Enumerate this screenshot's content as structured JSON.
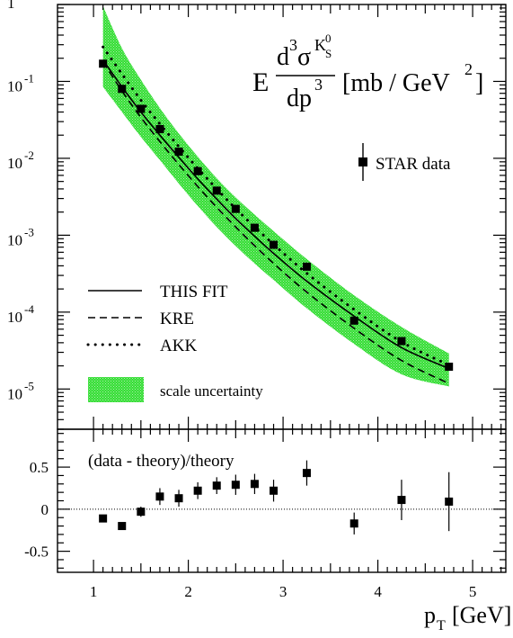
{
  "chart_data": [
    {
      "type": "line",
      "panel": "top",
      "yscale": "log",
      "xlim": [
        0.62,
        5.35
      ],
      "ylim": [
        3e-06,
        1
      ],
      "ylabel": {
        "prefix": "E",
        "num_base": "d",
        "num_exp": "3",
        "num_sigma": "σ",
        "num_sup_K": "K",
        "num_sup_K_sub": "S",
        "num_sup_K_sup": "0",
        "den_base": "dp",
        "den_exp": "3",
        "unit_pre": "[mb / GeV",
        "unit_exp": "2",
        "unit_post": "]"
      },
      "ytick_labels": [
        {
          "v": 1,
          "base": "1",
          "exp": ""
        },
        {
          "v": 0.1,
          "base": "10",
          "exp": "-1"
        },
        {
          "v": 0.01,
          "base": "10",
          "exp": "-2"
        },
        {
          "v": 0.001,
          "base": "10",
          "exp": "-3"
        },
        {
          "v": 0.0001,
          "base": "10",
          "exp": "-4"
        },
        {
          "v": 1e-05,
          "base": "10",
          "exp": "-5"
        }
      ],
      "band": {
        "name": "scale uncertainty",
        "color": "#33dd33",
        "x": [
          1.1,
          1.3,
          1.5,
          1.7,
          1.9,
          2.1,
          2.3,
          2.5,
          2.7,
          2.9,
          3.25,
          3.75,
          4.25,
          4.75
        ],
        "upper": [
          0.95,
          0.27,
          0.105,
          0.045,
          0.021,
          0.0105,
          0.0055,
          0.0031,
          0.00185,
          0.00113,
          0.00049,
          0.000165,
          6.4e-05,
          2.9e-05
        ],
        "lower": [
          0.085,
          0.04,
          0.019,
          0.0095,
          0.0047,
          0.0024,
          0.00128,
          0.000725,
          0.000428,
          0.000262,
          0.000112,
          3.85e-05,
          1.55e-05,
          1.08e-05
        ]
      },
      "series": [
        {
          "name": "THIS FIT",
          "style": "solid",
          "x": [
            1.1,
            1.3,
            1.5,
            1.7,
            1.9,
            2.1,
            2.3,
            2.5,
            2.7,
            2.9,
            3.25,
            3.75,
            4.25,
            4.75
          ],
          "y": [
            0.19,
            0.085,
            0.04,
            0.02,
            0.0103,
            0.0054,
            0.00295,
            0.00165,
            0.00097,
            0.00058,
            0.000252,
            8.85e-05,
            3.45e-05,
            1.85e-05
          ]
        },
        {
          "name": "KRE",
          "style": "dashed",
          "x": [
            1.1,
            1.3,
            1.5,
            1.7,
            1.9,
            2.1,
            2.3,
            2.5,
            2.7,
            2.9,
            3.25,
            3.75,
            4.25,
            4.75
          ],
          "y": [
            0.18,
            0.075,
            0.034,
            0.0165,
            0.0083,
            0.0043,
            0.0023,
            0.00128,
            0.00073,
            0.00043,
            0.000182,
            6.15e-05,
            2.35e-05,
            1.18e-05
          ]
        },
        {
          "name": "AKK",
          "style": "dotted",
          "x": [
            1.1,
            1.3,
            1.5,
            1.7,
            1.9,
            2.1,
            2.3,
            2.5,
            2.7,
            2.9,
            3.25,
            3.75,
            4.25,
            4.75
          ],
          "y": [
            0.28,
            0.125,
            0.057,
            0.028,
            0.0142,
            0.0074,
            0.004,
            0.00222,
            0.00128,
            0.00076,
            0.00032,
            0.000108,
            4.1e-05,
            2.05e-05
          ]
        }
      ],
      "points": {
        "name": "STAR data",
        "x": [
          1.1,
          1.3,
          1.5,
          1.7,
          1.9,
          2.1,
          2.3,
          2.5,
          2.7,
          2.9,
          3.25,
          3.75,
          4.25,
          4.75
        ],
        "y": [
          0.17,
          0.08,
          0.044,
          0.024,
          0.0122,
          0.0068,
          0.0038,
          0.0022,
          0.00125,
          0.00075,
          0.00039,
          7.75e-05,
          4.2e-05,
          1.95e-05
        ]
      },
      "legend": {
        "this_fit": "THIS FIT",
        "kre": "KRE",
        "akk": "AKK",
        "band": "scale uncertainty",
        "data": "STAR data"
      }
    },
    {
      "type": "scatter",
      "panel": "bottom",
      "title": "(data - theory)/theory",
      "xlabel": {
        "base": "p",
        "sub": "T",
        "unit": "[GeV]"
      },
      "xlim": [
        0.62,
        5.35
      ],
      "ylim": [
        -0.75,
        0.95
      ],
      "xticks": [
        1,
        2,
        3,
        4,
        5
      ],
      "xtick_labels": [
        "1",
        "2",
        "3",
        "4",
        "5"
      ],
      "yticks": [
        0.5,
        0,
        -0.5
      ],
      "ytick_labels": [
        "0.5",
        "0",
        "-0.5"
      ],
      "reference_line": 0,
      "points": {
        "x": [
          1.1,
          1.3,
          1.5,
          1.7,
          1.9,
          2.1,
          2.3,
          2.5,
          2.7,
          2.9,
          3.25,
          3.75,
          4.25,
          4.75
        ],
        "y": [
          -0.11,
          -0.2,
          -0.03,
          0.15,
          0.13,
          0.22,
          0.28,
          0.29,
          0.3,
          0.22,
          0.43,
          -0.17,
          0.11,
          0.09
        ],
        "err": [
          0.02,
          0.03,
          0.06,
          0.1,
          0.1,
          0.1,
          0.1,
          0.12,
          0.12,
          0.13,
          0.15,
          0.13,
          0.24,
          0.35
        ]
      }
    }
  ]
}
